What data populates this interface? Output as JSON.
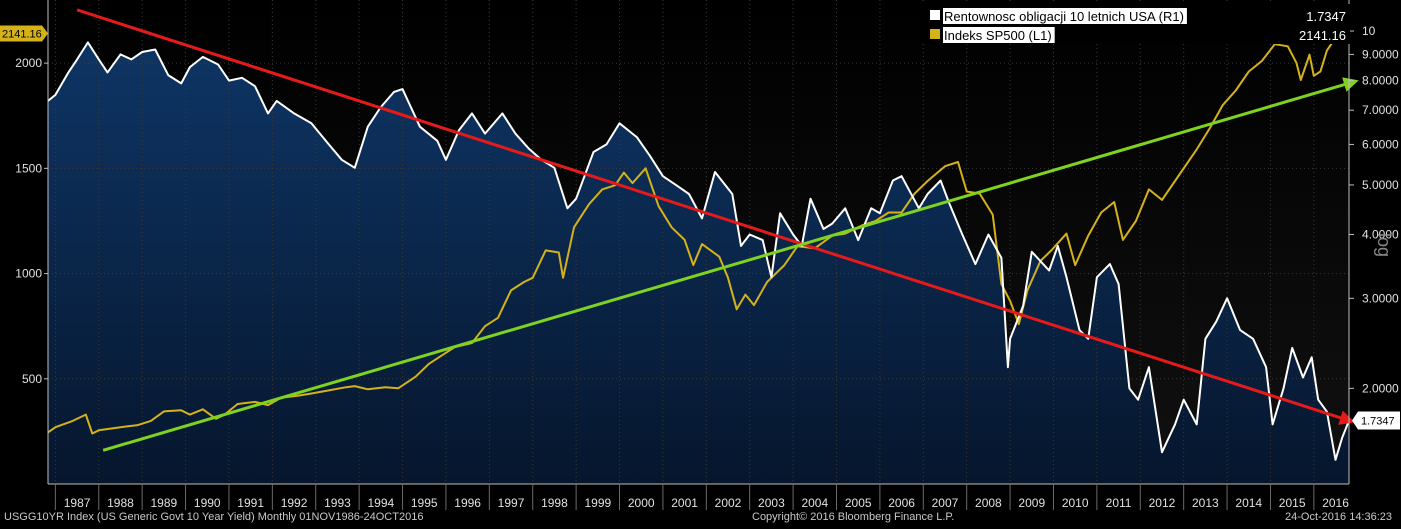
{
  "chart_data": {
    "type": "line",
    "x_range": [
      1986.83,
      2016.81
    ],
    "xticks": [
      "1987",
      "1988",
      "1989",
      "1990",
      "1991",
      "1992",
      "1993",
      "1994",
      "1995",
      "1996",
      "1997",
      "1998",
      "1999",
      "2000",
      "2001",
      "2002",
      "2003",
      "2004",
      "2005",
      "2006",
      "2007",
      "2008",
      "2009",
      "2010",
      "2011",
      "2012",
      "2013",
      "2014",
      "2015",
      "2016"
    ],
    "left_axis": {
      "ticks": [
        "500",
        "1000",
        "1500",
        "2000"
      ],
      "ylim": [
        0,
        2300
      ],
      "last_value_label": "2141.16"
    },
    "right_axis": {
      "scale": "log",
      "label": "log",
      "ticks": [
        "10",
        "9.0000",
        "8.0000",
        "7.0000",
        "6.0000",
        "5.0000",
        "4.0000",
        "3.0000",
        "2.0000"
      ],
      "ylim": [
        1.3,
        11.5
      ],
      "last_value_label": "1.7347"
    },
    "legend": {
      "position": "top-right",
      "entries": [
        {
          "name": "Rentownosc obligacji 10 letnich USA (R1)",
          "value": "1.7347"
        },
        {
          "name": "Indeks SP500 (L1)",
          "value": "2141.16"
        }
      ]
    },
    "series": [
      {
        "name": "Rentownosc obligacji 10 letnich USA (R1)",
        "axis": "right",
        "color": "#ffffff",
        "fill": "#0b2a52",
        "points": [
          [
            1986.83,
            7.3
          ],
          [
            1987.0,
            7.5
          ],
          [
            1987.3,
            8.3
          ],
          [
            1987.5,
            8.8
          ],
          [
            1987.75,
            9.5
          ],
          [
            1988.0,
            8.8
          ],
          [
            1988.2,
            8.3
          ],
          [
            1988.5,
            9.0
          ],
          [
            1988.75,
            8.8
          ],
          [
            1989.0,
            9.1
          ],
          [
            1989.3,
            9.2
          ],
          [
            1989.6,
            8.2
          ],
          [
            1989.9,
            7.9
          ],
          [
            1990.1,
            8.5
          ],
          [
            1990.4,
            8.9
          ],
          [
            1990.75,
            8.6
          ],
          [
            1991.0,
            8.0
          ],
          [
            1991.3,
            8.1
          ],
          [
            1991.6,
            7.8
          ],
          [
            1991.9,
            6.9
          ],
          [
            1992.1,
            7.3
          ],
          [
            1992.5,
            6.9
          ],
          [
            1992.9,
            6.6
          ],
          [
            1993.3,
            6.0
          ],
          [
            1993.6,
            5.6
          ],
          [
            1993.9,
            5.4
          ],
          [
            1994.2,
            6.5
          ],
          [
            1994.5,
            7.1
          ],
          [
            1994.8,
            7.6
          ],
          [
            1995.0,
            7.7
          ],
          [
            1995.4,
            6.5
          ],
          [
            1995.8,
            6.1
          ],
          [
            1996.0,
            5.6
          ],
          [
            1996.3,
            6.4
          ],
          [
            1996.6,
            6.9
          ],
          [
            1996.9,
            6.3
          ],
          [
            1997.3,
            6.9
          ],
          [
            1997.6,
            6.3
          ],
          [
            1997.9,
            5.9
          ],
          [
            1998.2,
            5.6
          ],
          [
            1998.5,
            5.4
          ],
          [
            1998.8,
            4.5
          ],
          [
            1999.0,
            4.7
          ],
          [
            1999.4,
            5.8
          ],
          [
            1999.7,
            6.0
          ],
          [
            2000.0,
            6.6
          ],
          [
            2000.4,
            6.2
          ],
          [
            2000.7,
            5.7
          ],
          [
            2001.0,
            5.2
          ],
          [
            2001.3,
            5.0
          ],
          [
            2001.6,
            4.8
          ],
          [
            2001.9,
            4.3
          ],
          [
            2002.2,
            5.3
          ],
          [
            2002.6,
            4.8
          ],
          [
            2002.8,
            3.8
          ],
          [
            2003.0,
            4.0
          ],
          [
            2003.3,
            3.9
          ],
          [
            2003.5,
            3.3
          ],
          [
            2003.7,
            4.4
          ],
          [
            2004.0,
            4.0
          ],
          [
            2004.2,
            3.8
          ],
          [
            2004.4,
            4.7
          ],
          [
            2004.7,
            4.1
          ],
          [
            2004.9,
            4.2
          ],
          [
            2005.2,
            4.5
          ],
          [
            2005.5,
            3.9
          ],
          [
            2005.8,
            4.5
          ],
          [
            2006.0,
            4.4
          ],
          [
            2006.3,
            5.1
          ],
          [
            2006.5,
            5.2
          ],
          [
            2006.9,
            4.5
          ],
          [
            2007.1,
            4.8
          ],
          [
            2007.4,
            5.1
          ],
          [
            2007.6,
            4.6
          ],
          [
            2007.9,
            4.0
          ],
          [
            2008.2,
            3.5
          ],
          [
            2008.5,
            4.0
          ],
          [
            2008.8,
            3.6
          ],
          [
            2008.95,
            2.2
          ],
          [
            2009.0,
            2.5
          ],
          [
            2009.3,
            2.9
          ],
          [
            2009.5,
            3.7
          ],
          [
            2009.9,
            3.4
          ],
          [
            2010.1,
            3.8
          ],
          [
            2010.3,
            3.3
          ],
          [
            2010.6,
            2.6
          ],
          [
            2010.8,
            2.5
          ],
          [
            2011.0,
            3.3
          ],
          [
            2011.3,
            3.5
          ],
          [
            2011.5,
            3.2
          ],
          [
            2011.75,
            2.0
          ],
          [
            2011.95,
            1.9
          ],
          [
            2012.2,
            2.2
          ],
          [
            2012.5,
            1.5
          ],
          [
            2012.8,
            1.7
          ],
          [
            2013.0,
            1.9
          ],
          [
            2013.3,
            1.7
          ],
          [
            2013.5,
            2.5
          ],
          [
            2013.75,
            2.7
          ],
          [
            2014.0,
            3.0
          ],
          [
            2014.3,
            2.6
          ],
          [
            2014.6,
            2.5
          ],
          [
            2014.9,
            2.2
          ],
          [
            2015.05,
            1.7
          ],
          [
            2015.3,
            2.0
          ],
          [
            2015.5,
            2.4
          ],
          [
            2015.75,
            2.1
          ],
          [
            2015.95,
            2.3
          ],
          [
            2016.1,
            1.9
          ],
          [
            2016.3,
            1.8
          ],
          [
            2016.5,
            1.45
          ],
          [
            2016.65,
            1.6
          ],
          [
            2016.81,
            1.73
          ]
        ]
      },
      {
        "name": "Indeks SP500 (L1)",
        "axis": "left",
        "color": "#d4b21a",
        "points": [
          [
            1986.83,
            245
          ],
          [
            1987.0,
            270
          ],
          [
            1987.4,
            300
          ],
          [
            1987.7,
            330
          ],
          [
            1987.85,
            240
          ],
          [
            1988.0,
            255
          ],
          [
            1988.5,
            270
          ],
          [
            1988.9,
            280
          ],
          [
            1989.2,
            300
          ],
          [
            1989.5,
            345
          ],
          [
            1989.9,
            350
          ],
          [
            1990.1,
            330
          ],
          [
            1990.4,
            355
          ],
          [
            1990.7,
            310
          ],
          [
            1990.9,
            330
          ],
          [
            1991.2,
            380
          ],
          [
            1991.6,
            390
          ],
          [
            1991.9,
            375
          ],
          [
            1992.2,
            410
          ],
          [
            1992.6,
            420
          ],
          [
            1992.9,
            430
          ],
          [
            1993.3,
            445
          ],
          [
            1993.7,
            460
          ],
          [
            1993.9,
            465
          ],
          [
            1994.2,
            450
          ],
          [
            1994.6,
            460
          ],
          [
            1994.9,
            455
          ],
          [
            1995.3,
            510
          ],
          [
            1995.6,
            570
          ],
          [
            1995.9,
            610
          ],
          [
            1996.2,
            650
          ],
          [
            1996.6,
            670
          ],
          [
            1996.9,
            750
          ],
          [
            1997.2,
            790
          ],
          [
            1997.5,
            920
          ],
          [
            1997.8,
            960
          ],
          [
            1998.0,
            980
          ],
          [
            1998.3,
            1110
          ],
          [
            1998.6,
            1100
          ],
          [
            1998.7,
            980
          ],
          [
            1998.95,
            1220
          ],
          [
            1999.3,
            1330
          ],
          [
            1999.6,
            1400
          ],
          [
            1999.9,
            1420
          ],
          [
            2000.1,
            1480
          ],
          [
            2000.3,
            1430
          ],
          [
            2000.6,
            1500
          ],
          [
            2000.9,
            1320
          ],
          [
            2001.2,
            1220
          ],
          [
            2001.5,
            1160
          ],
          [
            2001.7,
            1040
          ],
          [
            2001.9,
            1140
          ],
          [
            2002.3,
            1080
          ],
          [
            2002.5,
            980
          ],
          [
            2002.7,
            830
          ],
          [
            2002.9,
            900
          ],
          [
            2003.1,
            850
          ],
          [
            2003.4,
            960
          ],
          [
            2003.8,
            1040
          ],
          [
            2004.1,
            1130
          ],
          [
            2004.5,
            1120
          ],
          [
            2004.9,
            1180
          ],
          [
            2005.2,
            1190
          ],
          [
            2005.6,
            1230
          ],
          [
            2005.9,
            1250
          ],
          [
            2006.2,
            1290
          ],
          [
            2006.5,
            1290
          ],
          [
            2006.8,
            1380
          ],
          [
            2007.1,
            1440
          ],
          [
            2007.5,
            1510
          ],
          [
            2007.8,
            1530
          ],
          [
            2008.0,
            1390
          ],
          [
            2008.3,
            1380
          ],
          [
            2008.6,
            1280
          ],
          [
            2008.8,
            950
          ],
          [
            2009.0,
            870
          ],
          [
            2009.2,
            760
          ],
          [
            2009.4,
            920
          ],
          [
            2009.7,
            1060
          ],
          [
            2009.95,
            1110
          ],
          [
            2010.3,
            1190
          ],
          [
            2010.5,
            1040
          ],
          [
            2010.8,
            1180
          ],
          [
            2011.1,
            1290
          ],
          [
            2011.4,
            1340
          ],
          [
            2011.6,
            1160
          ],
          [
            2011.9,
            1250
          ],
          [
            2012.2,
            1400
          ],
          [
            2012.5,
            1350
          ],
          [
            2012.8,
            1440
          ],
          [
            2013.0,
            1500
          ],
          [
            2013.3,
            1590
          ],
          [
            2013.6,
            1690
          ],
          [
            2013.9,
            1800
          ],
          [
            2014.2,
            1870
          ],
          [
            2014.5,
            1960
          ],
          [
            2014.8,
            2010
          ],
          [
            2015.1,
            2090
          ],
          [
            2015.4,
            2080
          ],
          [
            2015.6,
            2000
          ],
          [
            2015.7,
            1920
          ],
          [
            2015.9,
            2040
          ],
          [
            2016.0,
            1940
          ],
          [
            2016.15,
            1960
          ],
          [
            2016.3,
            2060
          ],
          [
            2016.5,
            2120
          ],
          [
            2016.6,
            2170
          ],
          [
            2016.81,
            2141
          ]
        ]
      }
    ],
    "annotations": [
      {
        "name": "red-trend-arrow",
        "color": "#e51b1b",
        "axis": "right",
        "from": [
          1987.5,
          11.0
        ],
        "to": [
          2016.81,
          1.73
        ]
      },
      {
        "name": "green-trend-arrow",
        "color": "#7ed321",
        "axis": "left",
        "from": [
          1988.1,
          160
        ],
        "to": [
          2016.9,
          1910
        ]
      }
    ]
  },
  "footer": {
    "left": "USGG10YR Index (US Generic Govt 10 Year Yield)  Monthly 01NOV1986-24OCT2016",
    "center": "Copyright© 2016 Bloomberg Finance L.P.",
    "right": "24-Oct-2016 14:36:23"
  }
}
